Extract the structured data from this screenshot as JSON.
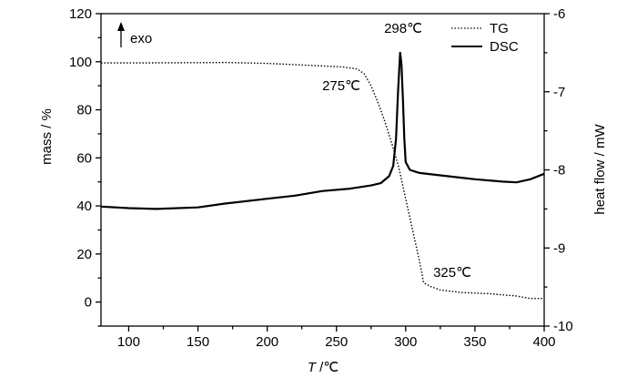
{
  "chart_data": {
    "type": "line",
    "x_axis": {
      "label_italic": "T",
      "label_unit": " /℃",
      "range": [
        80,
        400
      ],
      "ticks": [
        100,
        150,
        200,
        250,
        300,
        350,
        400
      ]
    },
    "y_left": {
      "label": "mass / %",
      "range": [
        -10,
        120
      ],
      "ticks": [
        0,
        20,
        40,
        60,
        80,
        100,
        120
      ],
      "tick_labels": [
        "0",
        "20",
        "40",
        "60",
        "80",
        "100",
        "120"
      ]
    },
    "y_right": {
      "label": "heat flow / mW",
      "range": [
        -10,
        -6
      ],
      "ticks": [
        -10,
        -9,
        -8,
        -7,
        -6
      ],
      "tick_labels": [
        "-10",
        "-9",
        "-8",
        "-7",
        "-6"
      ]
    },
    "legend": {
      "placement": "top-right"
    },
    "series": [
      {
        "name": "TG",
        "axis": "left",
        "style": "dotted",
        "points": [
          [
            80,
            99.5
          ],
          [
            100,
            99.5
          ],
          [
            150,
            99.6
          ],
          [
            170,
            99.7
          ],
          [
            200,
            99.3
          ],
          [
            230,
            98.5
          ],
          [
            255,
            97.8
          ],
          [
            265,
            97.0
          ],
          [
            270,
            95.0
          ],
          [
            275,
            90.0
          ],
          [
            280,
            83.0
          ],
          [
            285,
            75.0
          ],
          [
            290,
            66.0
          ],
          [
            295,
            56.0
          ],
          [
            300,
            43.0
          ],
          [
            305,
            30.0
          ],
          [
            310,
            17.0
          ],
          [
            313,
            8.0
          ],
          [
            318,
            6.5
          ],
          [
            325,
            5.0
          ],
          [
            340,
            4.0
          ],
          [
            360,
            3.5
          ],
          [
            380,
            2.5
          ],
          [
            390,
            1.5
          ],
          [
            400,
            1.5
          ]
        ]
      },
      {
        "name": "DSC",
        "axis": "right",
        "style": "solid",
        "points": [
          [
            80,
            -8.47
          ],
          [
            100,
            -8.49
          ],
          [
            120,
            -8.5
          ],
          [
            150,
            -8.48
          ],
          [
            170,
            -8.43
          ],
          [
            200,
            -8.37
          ],
          [
            220,
            -8.33
          ],
          [
            240,
            -8.27
          ],
          [
            260,
            -8.24
          ],
          [
            275,
            -8.2
          ],
          [
            282,
            -8.17
          ],
          [
            288,
            -8.08
          ],
          [
            291,
            -7.95
          ],
          [
            293,
            -7.6
          ],
          [
            294.5,
            -7.0
          ],
          [
            296,
            -6.5
          ],
          [
            297,
            -6.65
          ],
          [
            298,
            -7.1
          ],
          [
            299,
            -7.6
          ],
          [
            300,
            -7.9
          ],
          [
            303,
            -8.0
          ],
          [
            310,
            -8.04
          ],
          [
            330,
            -8.08
          ],
          [
            350,
            -8.12
          ],
          [
            370,
            -8.15
          ],
          [
            380,
            -8.16
          ],
          [
            390,
            -8.12
          ],
          [
            400,
            -8.05
          ]
        ]
      }
    ],
    "annotations": [
      {
        "text": "298℃",
        "x": 298,
        "axis": "right",
        "y": -6.2
      },
      {
        "text": "275℃",
        "x": 275,
        "axis": "left",
        "y": 91
      },
      {
        "text": "325℃",
        "x": 325,
        "axis": "left",
        "y": 11
      },
      {
        "text": "exo",
        "arrow": "up"
      }
    ]
  }
}
